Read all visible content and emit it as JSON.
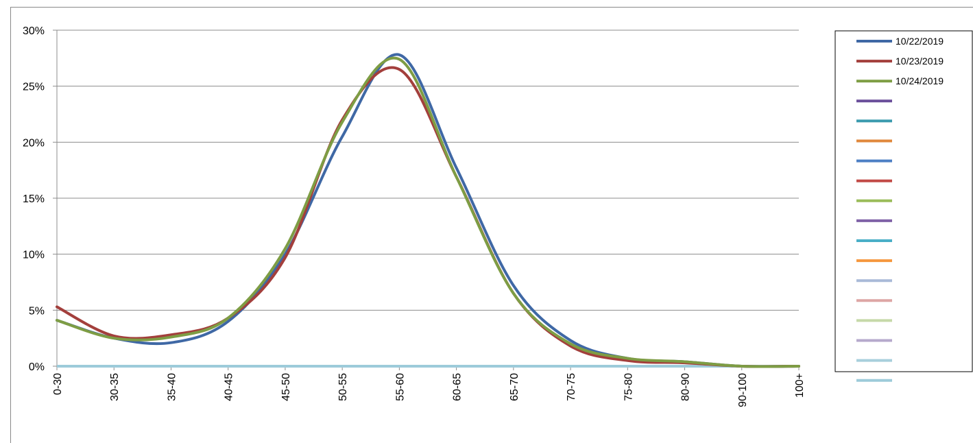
{
  "chart_data": {
    "type": "line",
    "title": "",
    "xlabel": "",
    "ylabel": "",
    "categories": [
      "0-30",
      "30-35",
      "35-40",
      "40-45",
      "45-50",
      "50-55",
      "55-60",
      "60-65",
      "65-70",
      "70-75",
      "75-80",
      "80-90",
      "90-100",
      "100+"
    ],
    "y_ticks": [
      "0%",
      "5%",
      "10%",
      "15%",
      "20%",
      "25%",
      "30%"
    ],
    "ylim": [
      0,
      30
    ],
    "grid": "horizontal",
    "legend_position": "right",
    "series": [
      {
        "name": "10/22/2019",
        "color": "#3F68A5",
        "values": [
          4.1,
          2.5,
          2.1,
          4.0,
          10.0,
          20.5,
          27.8,
          17.7,
          7.2,
          2.3,
          0.7,
          0.4,
          0.0,
          0.0
        ]
      },
      {
        "name": "10/23/2019",
        "color": "#A33F3C",
        "values": [
          5.3,
          2.7,
          2.8,
          4.3,
          9.7,
          22.0,
          26.5,
          16.9,
          6.5,
          1.8,
          0.5,
          0.3,
          0.0,
          0.0
        ]
      },
      {
        "name": "10/24/2019",
        "color": "#7E9D44",
        "values": [
          4.1,
          2.5,
          2.6,
          4.3,
          10.5,
          21.8,
          27.4,
          16.9,
          6.5,
          2.0,
          0.7,
          0.4,
          0.0,
          0.0
        ]
      }
    ],
    "empty_legend_colors": [
      "#6A4E9A",
      "#3A9AAE",
      "#E0883C",
      "#4D7FC4",
      "#C24B47",
      "#9BBC5A",
      "#7F62A7",
      "#4AAFC7",
      "#F5973E",
      "#A9BAD8",
      "#DDA6A5",
      "#C6D9A9",
      "#B6A9CC",
      "#A8CFDC"
    ],
    "baseline_color": "#9DCBDA"
  }
}
